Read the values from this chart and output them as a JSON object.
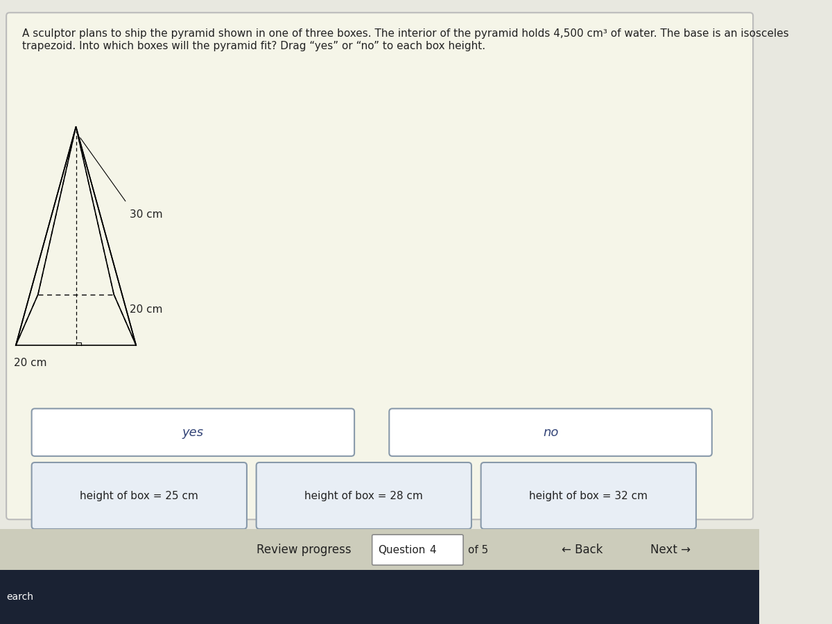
{
  "title_text": "A sculptor plans to ship the pyramid shown in one of three boxes. The interior of the pyramid holds 4,500 cm³ of water. The base is an isosceles\ntrapezoid. Into which boxes will the pyramid fit? Drag “yes” or “no” to each box height.",
  "dim_30cm": "30 cm",
  "dim_20cm_side": "20 cm",
  "dim_20cm_base": "20 cm",
  "yes_label": "yes",
  "no_label": "no",
  "box_labels": [
    "height of box = 25 cm",
    "height of box = 28 cm",
    "height of box = 32 cm"
  ],
  "review_text": "Review progress",
  "question_text": "Question",
  "question_num": "4",
  "of_text": "of 5",
  "back_text": "← Back",
  "next_text": "Next →",
  "search_text": "earch",
  "bg_color": "#e8e8e0",
  "card_bg": "#f5f5e8",
  "box_bg": "#e8eef5",
  "border_color": "#8899aa",
  "text_color": "#222222",
  "blue_text": "#334477",
  "title_font_size": 11,
  "label_font_size": 12,
  "bottom_bar_color": "#2a3a5a",
  "taskbar_color": "#1a2233"
}
